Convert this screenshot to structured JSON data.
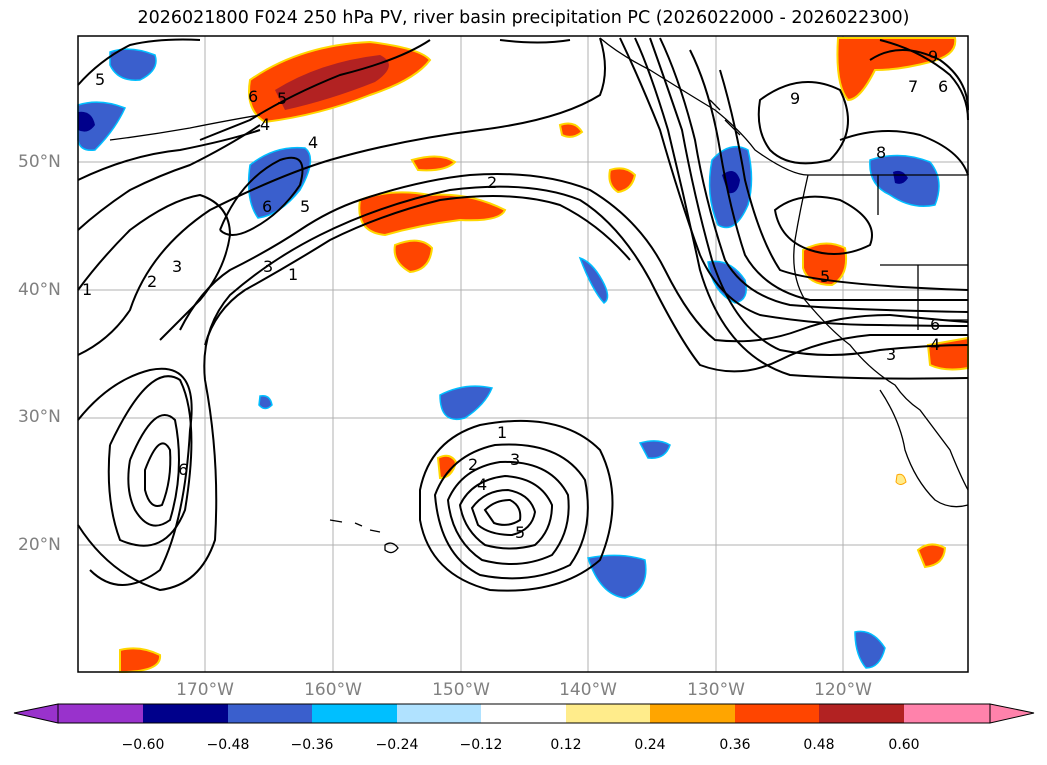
{
  "title": "2026021800 F024 250 hPa PV, river basin precipitation PC (2026022000 - 2026022300)",
  "latitude_labels": [
    "50°N",
    "40°N",
    "30°N",
    "20°N"
  ],
  "longitude_labels": [
    "170°W",
    "160°W",
    "150°W",
    "140°W",
    "130°W",
    "120°W"
  ],
  "colorbar": {
    "tick_labels": [
      "−0.60",
      "−0.48",
      "−0.36",
      "−0.24",
      "−0.12",
      "0.12",
      "0.24",
      "0.36",
      "0.48",
      "0.60"
    ],
    "colors": [
      "#9932cc",
      "#00008b",
      "#3a5fcd",
      "#00bfff",
      "#b0e2ff",
      "#ffffff",
      "#ffec8b",
      "#ffa500",
      "#ff4500",
      "#b22222",
      "#ff82ab"
    ]
  },
  "contour_labels": [
    "5",
    "6",
    "5",
    "4",
    "4",
    "6",
    "5",
    "2",
    "3",
    "1",
    "1",
    "3",
    "6",
    "2",
    "9",
    "7",
    "6",
    "9",
    "8",
    "5",
    "6",
    "3",
    "4",
    "1",
    "2",
    "3",
    "4",
    "5"
  ],
  "colors": {
    "blue_fill": "#3a5fcd",
    "dark_blue_fill": "#00008b",
    "orange_fill": "#ff4500",
    "dark_red_fill": "#b22222",
    "yellow_edge": "#ffd700",
    "grid": "#b0b0b0",
    "contour": "#000000"
  }
}
